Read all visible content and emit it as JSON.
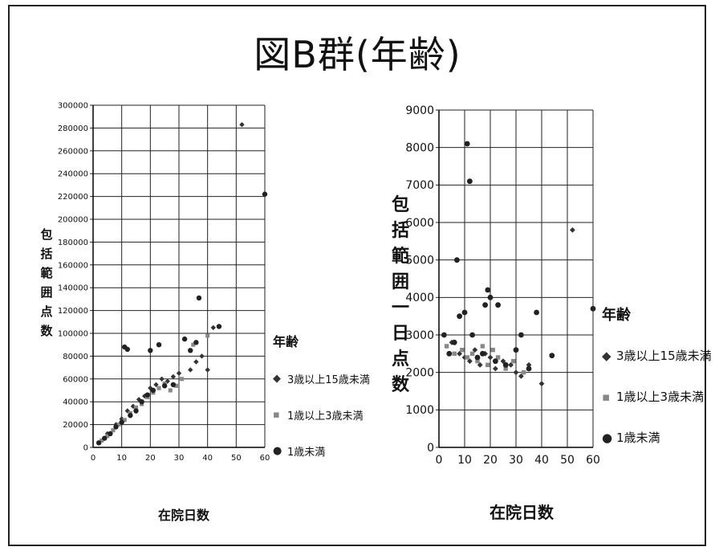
{
  "title": "図B群(年齢)",
  "chart_data": [
    {
      "type": "scatter",
      "xlabel": "在院日数",
      "ylabel": "包括範囲点数",
      "xlim": [
        0,
        60
      ],
      "ylim": [
        0,
        300000
      ],
      "xticks": [
        0,
        10,
        20,
        30,
        40,
        50,
        60
      ],
      "yticks": [
        0,
        20000,
        40000,
        60000,
        80000,
        100000,
        120000,
        140000,
        160000,
        180000,
        200000,
        220000,
        240000,
        260000,
        280000,
        300000
      ],
      "grid": true,
      "legend_title": "年齢",
      "legend_position": "right",
      "series": [
        {
          "name": "3歳以上15歳未満",
          "marker": "diamond",
          "points": [
            [
              5,
              12000
            ],
            [
              8,
              20000
            ],
            [
              10,
              25000
            ],
            [
              12,
              32000
            ],
            [
              14,
              36000
            ],
            [
              16,
              42000
            ],
            [
              18,
              45000
            ],
            [
              20,
              52000
            ],
            [
              22,
              55000
            ],
            [
              24,
              60000
            ],
            [
              26,
              58000
            ],
            [
              28,
              62000
            ],
            [
              30,
              65000
            ],
            [
              34,
              68000
            ],
            [
              36,
              75000
            ],
            [
              38,
              80000
            ],
            [
              40,
              68000
            ],
            [
              42,
              105000
            ],
            [
              52,
              283000
            ]
          ]
        },
        {
          "name": "1歳以上3歳未満",
          "marker": "square",
          "points": [
            [
              3,
              6000
            ],
            [
              5,
              10000
            ],
            [
              7,
              15000
            ],
            [
              9,
              20000
            ],
            [
              11,
              24000
            ],
            [
              13,
              30000
            ],
            [
              15,
              35000
            ],
            [
              17,
              38000
            ],
            [
              19,
              44000
            ],
            [
              21,
              48000
            ],
            [
              23,
              52000
            ],
            [
              25,
              56000
            ],
            [
              27,
              50000
            ],
            [
              29,
              54000
            ],
            [
              31,
              60000
            ],
            [
              35,
              90000
            ],
            [
              40,
              98000
            ]
          ]
        },
        {
          "name": "1歳未満",
          "marker": "circle",
          "points": [
            [
              2,
              4000
            ],
            [
              4,
              8000
            ],
            [
              6,
              12000
            ],
            [
              8,
              18000
            ],
            [
              10,
              22000
            ],
            [
              11,
              88000
            ],
            [
              12,
              86000
            ],
            [
              13,
              28000
            ],
            [
              15,
              32000
            ],
            [
              17,
              40000
            ],
            [
              19,
              46000
            ],
            [
              20,
              85000
            ],
            [
              21,
              50000
            ],
            [
              23,
              90000
            ],
            [
              25,
              54000
            ],
            [
              28,
              55000
            ],
            [
              32,
              95000
            ],
            [
              34,
              85000
            ],
            [
              36,
              92000
            ],
            [
              37,
              131000
            ],
            [
              44,
              106000
            ],
            [
              60,
              222000
            ]
          ]
        }
      ]
    },
    {
      "type": "scatter",
      "xlabel": "在院日数",
      "ylabel": "包括範囲一日点数",
      "xlim": [
        0,
        60
      ],
      "ylim": [
        0,
        9000
      ],
      "xticks": [
        0,
        10,
        20,
        30,
        40,
        50,
        60
      ],
      "yticks": [
        0,
        1000,
        2000,
        3000,
        4000,
        5000,
        6000,
        7000,
        8000,
        9000
      ],
      "grid": true,
      "legend_title": "年齢",
      "legend_position": "right",
      "series": [
        {
          "name": "3歳以上15歳未満",
          "marker": "diamond",
          "points": [
            [
              5,
              2800
            ],
            [
              8,
              2500
            ],
            [
              10,
              2400
            ],
            [
              12,
              2300
            ],
            [
              14,
              2600
            ],
            [
              16,
              2200
            ],
            [
              18,
              2500
            ],
            [
              20,
              2400
            ],
            [
              22,
              2100
            ],
            [
              25,
              2300
            ],
            [
              28,
              2200
            ],
            [
              30,
              2000
            ],
            [
              32,
              1900
            ],
            [
              35,
              2200
            ],
            [
              40,
              1700
            ],
            [
              52,
              5800
            ]
          ]
        },
        {
          "name": "1歳以上3歳未満",
          "marker": "square",
          "points": [
            [
              3,
              2700
            ],
            [
              6,
              2500
            ],
            [
              9,
              2600
            ],
            [
              11,
              2400
            ],
            [
              13,
              2500
            ],
            [
              15,
              2300
            ],
            [
              17,
              2700
            ],
            [
              19,
              2200
            ],
            [
              21,
              2600
            ],
            [
              23,
              2400
            ],
            [
              26,
              2100
            ],
            [
              29,
              2300
            ],
            [
              33,
              2000
            ]
          ]
        },
        {
          "name": "1歳未満",
          "marker": "circle",
          "points": [
            [
              2,
              3000
            ],
            [
              4,
              2500
            ],
            [
              6,
              2800
            ],
            [
              7,
              5000
            ],
            [
              8,
              3500
            ],
            [
              10,
              3600
            ],
            [
              11,
              8100
            ],
            [
              12,
              7100
            ],
            [
              13,
              3000
            ],
            [
              15,
              2400
            ],
            [
              17,
              2500
            ],
            [
              18,
              3800
            ],
            [
              19,
              4200
            ],
            [
              20,
              4000
            ],
            [
              22,
              2300
            ],
            [
              23,
              3800
            ],
            [
              26,
              2200
            ],
            [
              30,
              2600
            ],
            [
              32,
              3000
            ],
            [
              35,
              2100
            ],
            [
              38,
              3600
            ],
            [
              44,
              2450
            ],
            [
              60,
              3700
            ]
          ]
        }
      ]
    }
  ]
}
